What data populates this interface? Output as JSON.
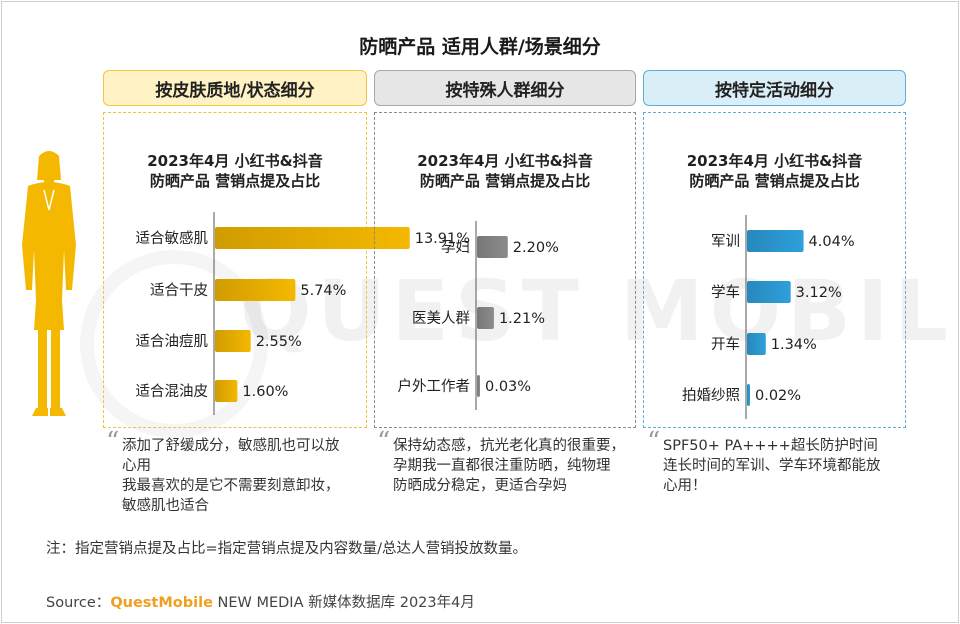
{
  "title": "防晒产品 适用人群/场景细分",
  "headers": [
    "按皮肤质地/状态细分",
    "按特殊人群细分",
    "按特定活动细分"
  ],
  "panel_title_line1": "2023年4月 小红书&抖音",
  "panel_title_line2": "防晒产品 营销点提及占比",
  "watermark": "QUEST MOBILE",
  "colors": {
    "skin": "#f5b800",
    "group": "#8c8c8c",
    "activity": "#2ea0dc"
  },
  "chart_data": [
    {
      "type": "bar",
      "orientation": "horizontal",
      "title": "2023年4月 小红书&抖音 防晒产品 营销点提及占比",
      "category": "按皮肤质地/状态细分",
      "categories": [
        "适合敏感肌",
        "适合干皮",
        "适合油痘肌",
        "适合混油皮"
      ],
      "values": [
        13.91,
        5.74,
        2.55,
        1.6
      ],
      "labels": [
        "13.91%",
        "5.74%",
        "2.55%",
        "1.60%"
      ],
      "unit": "%",
      "xlim": [
        0,
        14
      ]
    },
    {
      "type": "bar",
      "orientation": "horizontal",
      "title": "2023年4月 小红书&抖音 防晒产品 营销点提及占比",
      "category": "按特殊人群细分",
      "categories": [
        "孕妇",
        "医美人群",
        "户外工作者"
      ],
      "values": [
        2.2,
        1.21,
        0.03
      ],
      "labels": [
        "2.20%",
        "1.21%",
        "0.03%"
      ],
      "unit": "%",
      "xlim": [
        0,
        14
      ]
    },
    {
      "type": "bar",
      "orientation": "horizontal",
      "title": "2023年4月 小红书&抖音 防晒产品 营销点提及占比",
      "category": "按特定活动细分",
      "categories": [
        "军训",
        "学车",
        "开车",
        "拍婚纱照"
      ],
      "values": [
        4.04,
        3.12,
        1.34,
        0.02
      ],
      "labels": [
        "4.04%",
        "3.12%",
        "1.34%",
        "0.02%"
      ],
      "unit": "%",
      "xlim": [
        0,
        14
      ]
    }
  ],
  "quotes": [
    [
      "添加了舒缓成分，敏感肌也可以放",
      "心用",
      "我最喜欢的是它不需要刻意卸妆，",
      "敏感肌也适合"
    ],
    [
      "保持幼态感，抗光老化真的很重要，",
      "孕期我一直都很注重防晒，纯物理",
      "防晒成分稳定，更适合孕妈"
    ],
    [
      "SPF50+ PA++++超长防护时间",
      "连长时间的军训、学车环境都能放",
      "心用！"
    ]
  ],
  "note": "注：指定营销点提及占比=指定营销点提及内容数量/总达人营销投放数量。",
  "source": {
    "prefix": "Source：",
    "brand": "QuestMobile",
    "rest": " NEW MEDIA 新媒体数据库 2023年4月"
  }
}
